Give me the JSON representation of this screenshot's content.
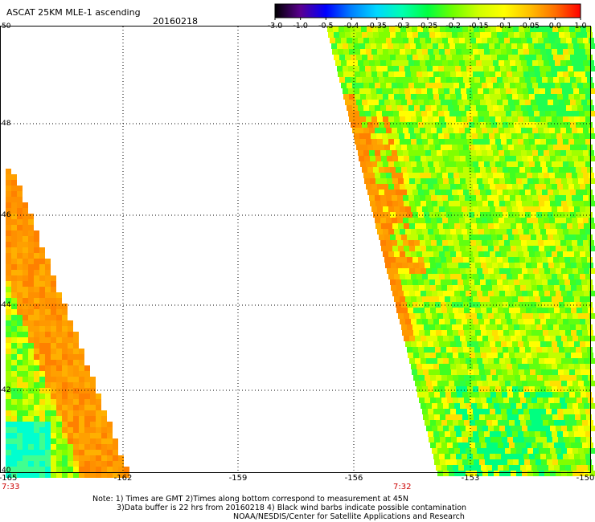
{
  "title": "ASCAT 25KM MLE-1 ascending",
  "date": "20160218",
  "colorbar": {
    "labels": [
      "-3.0",
      "-1.0",
      "-0.5",
      "-0.4",
      "-0.35",
      "-0.3",
      "-0.25",
      "-0.2",
      "-0.15",
      "-0.1",
      "-0.05",
      "0.0",
      "1.0"
    ],
    "colors": [
      "#000000",
      "#5a0090",
      "#0000ff",
      "#0080ff",
      "#00d8ff",
      "#00ffb0",
      "#00ff40",
      "#70ff00",
      "#d0ff00",
      "#ffff00",
      "#ffc000",
      "#ff7000",
      "#ff0000"
    ]
  },
  "axes": {
    "x_ticks": [
      "-165",
      "-162",
      "-159",
      "-156",
      "-153",
      "-150"
    ],
    "y_ticks": [
      "50",
      "48",
      "46",
      "44",
      "42",
      "40"
    ]
  },
  "times": [
    "7:33",
    "7:32"
  ],
  "notes": [
    "Note: 1) Times are GMT 2)Times along bottom correspond to measurement at 45N",
    "3)Data buffer is 22 hrs from 20160218 4) Black wind barbs indicate possible contamination",
    "NOAA/NESDIS/Center for Satellite Applications and Research"
  ]
}
